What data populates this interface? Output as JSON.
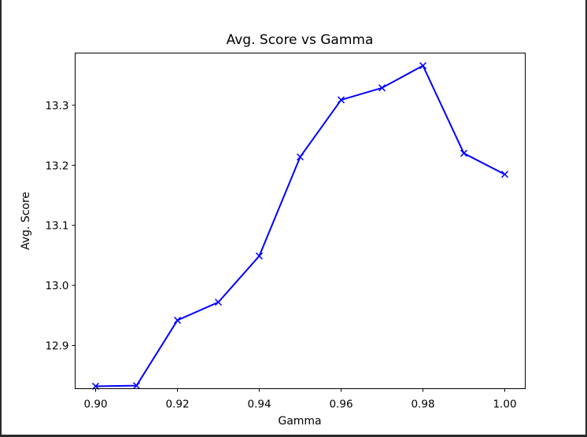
{
  "chart_data": {
    "type": "line",
    "title": "Avg. Score vs Gamma",
    "xlabel": "Gamma",
    "ylabel": "Avg. Score",
    "xlim": [
      0.895,
      1.005
    ],
    "ylim": [
      12.828,
      13.387
    ],
    "x_ticks": [
      0.9,
      0.92,
      0.94,
      0.96,
      0.98,
      1.0
    ],
    "x_tick_labels": [
      "0.90",
      "0.92",
      "0.94",
      "0.96",
      "0.98",
      "1.00"
    ],
    "y_ticks": [
      12.9,
      13.0,
      13.1,
      13.2,
      13.3
    ],
    "y_tick_labels": [
      "12.9",
      "13.0",
      "13.1",
      "13.2",
      "13.3"
    ],
    "grid": false,
    "series": [
      {
        "x": [
          0.9,
          0.91,
          0.92,
          0.93,
          0.94,
          0.95,
          0.96,
          0.97,
          0.98,
          0.99,
          1.0
        ],
        "values": [
          12.832,
          12.833,
          12.942,
          12.972,
          13.049,
          13.214,
          13.309,
          13.329,
          13.366,
          13.22,
          13.185
        ],
        "color": "#0000ff",
        "marker": "x"
      }
    ]
  }
}
